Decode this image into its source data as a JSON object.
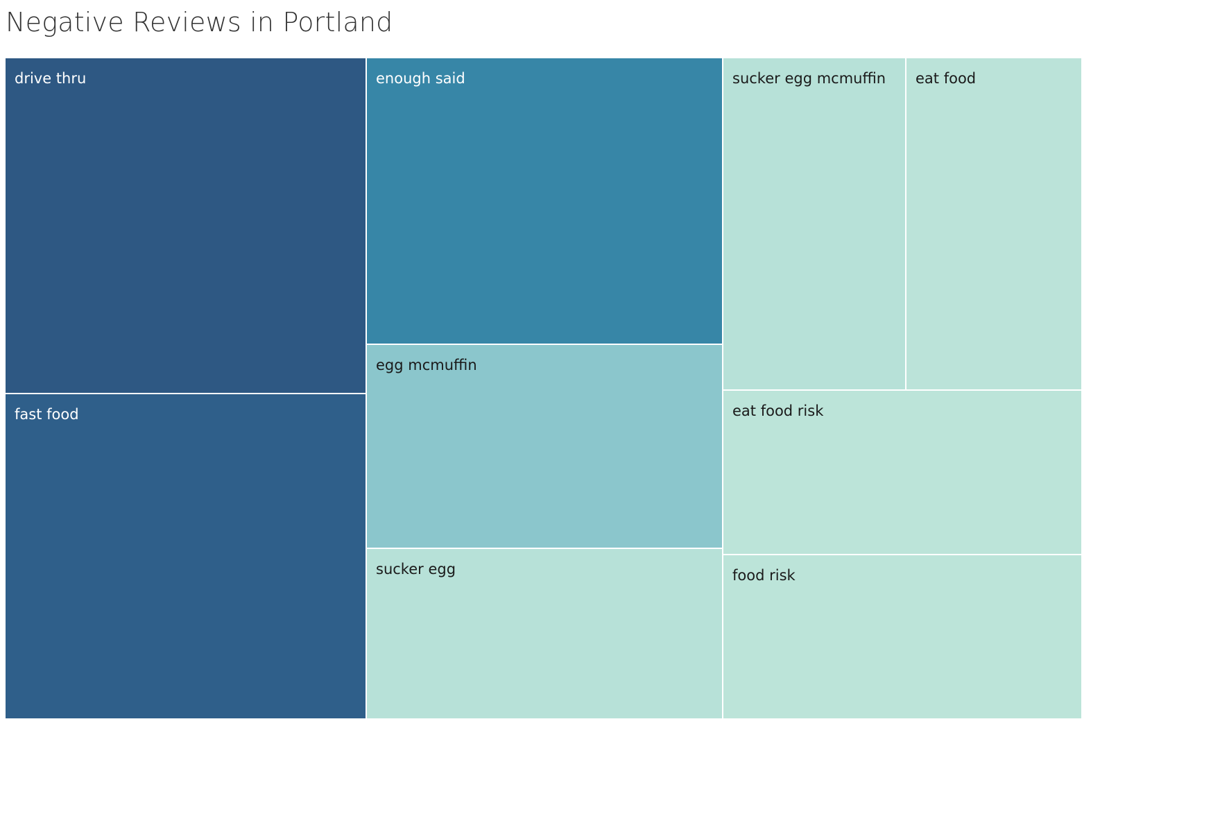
{
  "chart_data": {
    "type": "treemap",
    "title": "Negative Reviews in Portland",
    "items": [
      {
        "label": "drive thru",
        "value": 100,
        "color": "#2e5883",
        "text_color": "#ffffff"
      },
      {
        "label": "fast food",
        "value": 100,
        "color": "#2f5f8a",
        "text_color": "#ffffff"
      },
      {
        "label": "enough said",
        "value": 84,
        "color": "#3786a7",
        "text_color": "#ffffff"
      },
      {
        "label": "egg mcmuffin",
        "value": 60,
        "color": "#8bc6cc",
        "text_color": "#1a1a1a"
      },
      {
        "label": "sucker egg",
        "value": 48,
        "color": "#b7e1d8",
        "text_color": "#1a1a1a"
      },
      {
        "label": "sucker egg mcmuffin",
        "value": 50,
        "color": "#b7e1d8",
        "text_color": "#1a1a1a"
      },
      {
        "label": "eat food",
        "value": 48,
        "color": "#bbe3d9",
        "text_color": "#1a1a1a"
      },
      {
        "label": "eat food risk",
        "value": 48,
        "color": "#bce4d9",
        "text_color": "#1a1a1a"
      },
      {
        "label": "food risk",
        "value": 48,
        "color": "#bce4d9",
        "text_color": "#1a1a1a"
      }
    ]
  }
}
